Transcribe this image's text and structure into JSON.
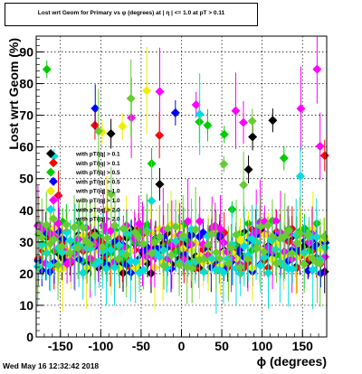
{
  "header": {
    "title": "Lost wrt Geom for Primary vs φ (degrees) at | η | <= 1.0 at pT > 0.11"
  },
  "footer": {
    "timestamp": "Wed May 16 12:32:42 2018"
  },
  "chart_data": {
    "type": "scatter",
    "title": "Lost wrt Geom for Primary vs φ (degrees) at | η | <= 1.0 at pT > 0.11",
    "xlabel": "ϕ (degrees)",
    "ylabel": "Lost wrt Geom (%)",
    "xlim": [
      -180,
      180
    ],
    "ylim": [
      0,
      95
    ],
    "xticks": [
      -150,
      -100,
      -50,
      0,
      50,
      100,
      150
    ],
    "yticks": [
      0,
      10,
      20,
      30,
      40,
      50,
      60,
      70,
      80,
      90
    ],
    "grid": true,
    "legend_position": "left-middle",
    "series": [
      {
        "name": "with pT/|q| > 0.1",
        "color": "#000000"
      },
      {
        "name": "with pT/|q| > 0.1",
        "color": "#ff0000"
      },
      {
        "name": "with pT/|q| > 0.5",
        "color": "#00cc00"
      },
      {
        "name": "with pT/|q| > 0.5",
        "color": "#0000ff"
      },
      {
        "name": "with pT/|q| > 1.0",
        "color": "#eeee00"
      },
      {
        "name": "with pT/|q| > 1.0",
        "color": "#ff00ff"
      },
      {
        "name": "with pT/|q| > 2.0",
        "color": "#00dddd"
      },
      {
        "name": "with pT/|q| > 2.0",
        "color": "#66cc33"
      }
    ]
  }
}
